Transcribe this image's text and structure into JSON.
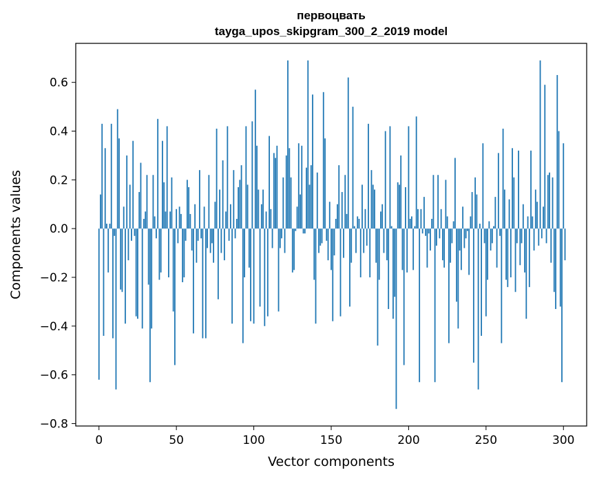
{
  "chart_data": {
    "type": "bar",
    "title": "первоцвать",
    "subtitle": "tayga_upos_skipgram_300_2_2019 model",
    "xlabel": "Vector components",
    "ylabel": "Components values",
    "xlim": [
      -15,
      315
    ],
    "ylim": [
      -0.81,
      0.76
    ],
    "xticks": [
      0,
      50,
      100,
      150,
      200,
      250,
      300
    ],
    "yticks": [
      -0.8,
      -0.6,
      -0.4,
      -0.2,
      0.0,
      0.2,
      0.4,
      0.6
    ],
    "ytick_labels": [
      "−0.8",
      "−0.6",
      "−0.4",
      "−0.2",
      "0.0",
      "0.2",
      "0.4",
      "0.6"
    ],
    "grid": false,
    "bar_color": "#1f77b4",
    "values": [
      -0.62,
      0.14,
      0.43,
      -0.44,
      0.33,
      0.02,
      -0.18,
      0.02,
      0.43,
      -0.45,
      -0.03,
      -0.66,
      0.49,
      0.37,
      -0.25,
      -0.26,
      0.09,
      -0.39,
      0.3,
      -0.13,
      0.18,
      -0.05,
      0.36,
      -0.03,
      -0.36,
      -0.37,
      0.15,
      0.27,
      -0.41,
      0.04,
      0.07,
      0.22,
      -0.23,
      -0.63,
      -0.41,
      0.22,
      0.05,
      -0.04,
      0.45,
      -0.21,
      -0.18,
      0.36,
      0.19,
      0.07,
      0.42,
      -0.2,
      0.07,
      0.21,
      -0.34,
      -0.56,
      0.08,
      -0.06,
      0.09,
      0.06,
      -0.22,
      -0.2,
      -0.05,
      0.2,
      0.17,
      0.06,
      -0.09,
      -0.43,
      0.1,
      -0.14,
      -0.05,
      0.24,
      -0.04,
      -0.45,
      0.09,
      -0.45,
      -0.08,
      0.22,
      -0.1,
      -0.06,
      -0.14,
      0.11,
      0.41,
      -0.29,
      0.16,
      -0.1,
      0.28,
      -0.13,
      0.07,
      0.42,
      -0.05,
      0.1,
      -0.39,
      0.24,
      -0.04,
      0.04,
      0.17,
      0.2,
      0.26,
      -0.47,
      -0.2,
      0.42,
      0.18,
      -0.16,
      -0.38,
      0.44,
      -0.39,
      0.57,
      0.34,
      0.16,
      -0.32,
      0.1,
      0.16,
      -0.4,
      0.07,
      -0.36,
      0.38,
      0.08,
      -0.08,
      0.31,
      0.29,
      0.34,
      -0.34,
      -0.08,
      -0.04,
      0.21,
      -0.1,
      0.3,
      0.69,
      0.33,
      0.21,
      -0.18,
      -0.17,
      -0.01,
      0.09,
      0.35,
      0.14,
      0.34,
      -0.02,
      -0.02,
      0.25,
      0.69,
      0.18,
      0.26,
      0.55,
      -0.21,
      -0.39,
      0.23,
      -0.1,
      -0.07,
      -0.06,
      0.56,
      0.37,
      -0.05,
      -0.13,
      0.11,
      -0.17,
      -0.38,
      -0.11,
      0.04,
      0.1,
      0.26,
      -0.36,
      0.15,
      -0.12,
      0.22,
      0.06,
      0.62,
      -0.32,
      -0.14,
      0.5,
      0.01,
      -0.1,
      0.05,
      0.04,
      -0.2,
      0.18,
      -0.1,
      0.08,
      -0.07,
      0.43,
      -0.2,
      0.24,
      0.18,
      0.16,
      -0.14,
      -0.48,
      -0.21,
      0.07,
      0.1,
      -0.1,
      0.4,
      -0.13,
      -0.33,
      0.42,
      0.01,
      -0.37,
      -0.28,
      -0.74,
      0.19,
      0.18,
      0.3,
      -0.17,
      -0.56,
      0.17,
      -0.18,
      0.42,
      0.04,
      0.05,
      -0.17,
      0.01,
      0.46,
      0.08,
      -0.63,
      0.08,
      -0.02,
      0.13,
      -0.03,
      -0.16,
      -0.02,
      -0.09,
      0.04,
      0.22,
      -0.63,
      -0.07,
      0.22,
      -0.04,
      0.08,
      -0.13,
      -0.16,
      0.2,
      0.05,
      -0.47,
      -0.14,
      -0.06,
      0.03,
      0.29,
      -0.3,
      -0.41,
      -0.09,
      -0.17,
      0.09,
      -0.08,
      -0.04,
      -0.01,
      -0.19,
      0.05,
      0.15,
      -0.55,
      0.21,
      0.14,
      -0.66,
      0.02,
      -0.44,
      0.35,
      -0.06,
      -0.36,
      -0.21,
      0.03,
      -0.09,
      -0.06,
      0.01,
      0.13,
      -0.16,
      0.31,
      -0.03,
      -0.47,
      0.41,
      0.16,
      -0.21,
      -0.24,
      0.12,
      -0.2,
      0.33,
      0.21,
      -0.26,
      -0.06,
      0.32,
      -0.15,
      -0.06,
      0.1,
      -0.18,
      -0.37,
      0.05,
      -0.24,
      0.32,
      0.05,
      -0.09,
      0.16,
      0.11,
      -0.07,
      0.69,
      -0.04,
      0.09,
      0.59,
      -0.06,
      0.22,
      0.23,
      -0.14,
      0.21,
      -0.26,
      -0.33,
      0.63,
      0.4,
      -0.32,
      -0.63,
      0.35,
      -0.13
    ]
  }
}
